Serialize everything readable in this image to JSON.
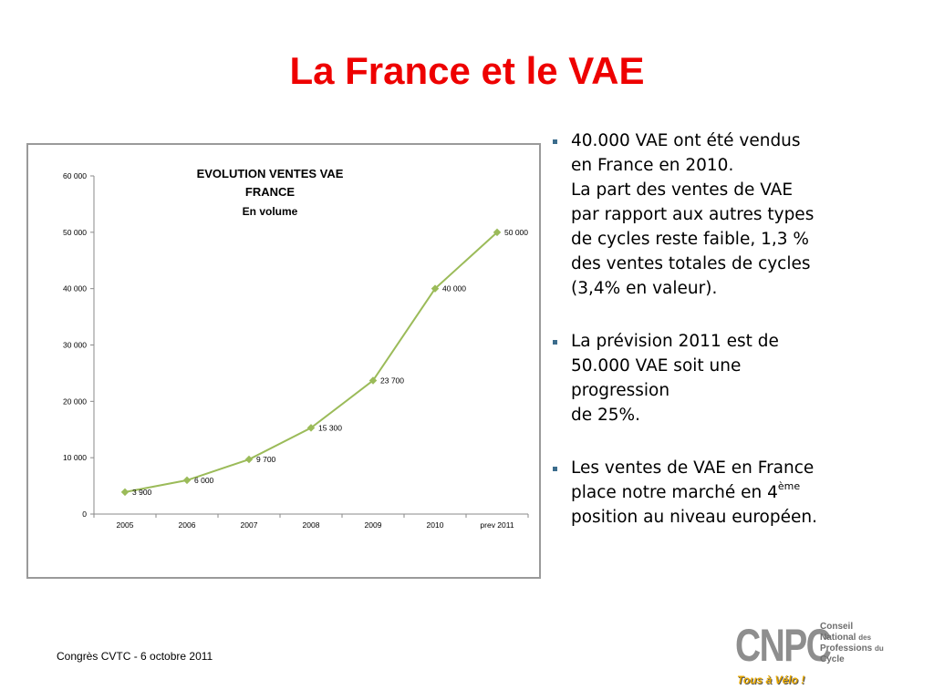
{
  "slide": {
    "title": "La France et le VAE",
    "footer": "Congrès CVTC - 6 octobre 2011"
  },
  "bullets": [
    {
      "lines": [
        "40.000 VAE ont été vendus",
        "en France en 2010.",
        "La part des ventes de VAE",
        "par rapport aux autres types",
        "de cycles reste faible, 1,3 %",
        "des ventes totales de cycles",
        "(3,4% en valeur)."
      ]
    },
    {
      "lines": [
        "La prévision 2011 est de",
        "50.000 VAE soit une",
        "progression",
        "de 25%."
      ]
    },
    {
      "line1": "Les ventes de VAE en France",
      "line2_before": "place notre marché en 4",
      "line2_sup": "ème",
      "line3": "position au niveau européen."
    }
  ],
  "logo": {
    "mark": "CNPC",
    "words": [
      "Conseil",
      "National",
      "des",
      "Professions",
      "du",
      "Cycle"
    ],
    "tagline": "Tous à Vélo !"
  },
  "chart_data": {
    "type": "line",
    "title_lines": [
      "EVOLUTION VENTES VAE",
      "FRANCE"
    ],
    "subtitle": "En volume",
    "categories": [
      "2005",
      "2006",
      "2007",
      "2008",
      "2009",
      "2010",
      "prev 2011"
    ],
    "values": [
      3900,
      6000,
      9700,
      15300,
      23700,
      40000,
      50000
    ],
    "value_labels": [
      "3 900",
      "6 000",
      "9 700",
      "15 300",
      "23 700",
      "40 000",
      "50 000"
    ],
    "y_ticks": [
      0,
      10000,
      20000,
      30000,
      40000,
      50000,
      60000
    ],
    "y_tick_labels": [
      "0",
      "10 000",
      "20 000",
      "30 000",
      "40 000",
      "50 000",
      "60 000"
    ],
    "ylim": [
      0,
      60000
    ],
    "xlabel": "",
    "ylabel": "",
    "grid": false,
    "legend": "none",
    "line_color": "#9bbb59"
  }
}
